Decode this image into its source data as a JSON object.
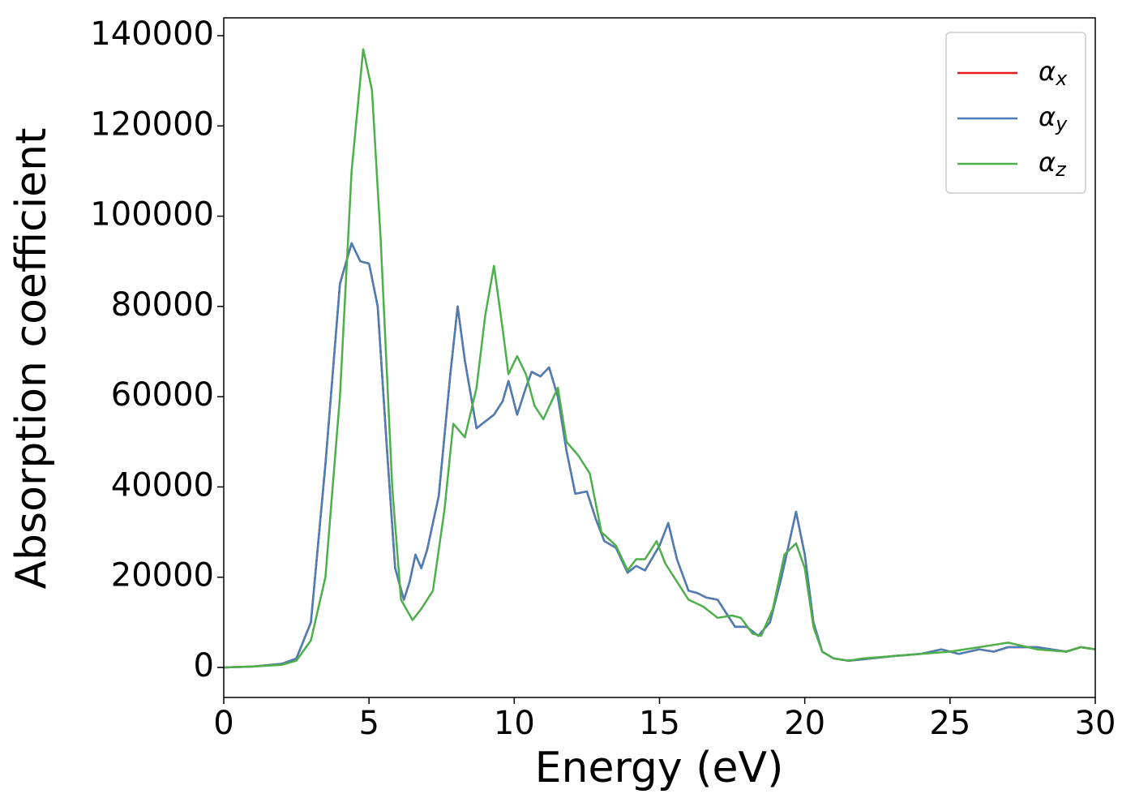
{
  "chart_data": {
    "type": "line",
    "xlabel": "Energy (eV)",
    "ylabel": "Absorption coefficient",
    "xlim": [
      0,
      30
    ],
    "xticks": [
      0,
      5,
      10,
      15,
      20,
      25,
      30
    ],
    "ylim": [
      -6650,
      143950
    ],
    "yticks": [
      0,
      20000,
      40000,
      60000,
      80000,
      100000,
      120000,
      140000
    ],
    "legend": "upper right",
    "series": [
      {
        "name": "αx",
        "color": "#e41a1c",
        "x": [
          0,
          1,
          2,
          2.5,
          3,
          3.5,
          4,
          4.4,
          4.7,
          5,
          5.3,
          5.6,
          5.9,
          6.2,
          6.4,
          6.6,
          6.8,
          7.0,
          7.4,
          7.8,
          8.05,
          8.3,
          8.7,
          9.0,
          9.3,
          9.6,
          9.8,
          10.1,
          10.4,
          10.6,
          10.9,
          11.2,
          11.5,
          11.8,
          12.1,
          12.5,
          12.8,
          13.1,
          13.5,
          13.9,
          14.2,
          14.5,
          15.0,
          15.3,
          15.6,
          16.0,
          16.3,
          16.6,
          17.0,
          17.3,
          17.6,
          18.0,
          18.4,
          18.8,
          19.2,
          19.7,
          20.0,
          20.3,
          20.6,
          21.0,
          21.5,
          22,
          23,
          24,
          24.7,
          25.3,
          26,
          26.5,
          27,
          28,
          29,
          29.5,
          30
        ],
        "values": [
          0,
          200,
          800,
          2000,
          10000,
          45000,
          85000,
          94000,
          90000,
          89500,
          80000,
          50000,
          22000,
          15000,
          19000,
          25000,
          22000,
          26000,
          38000,
          65000,
          80000,
          68000,
          53000,
          54500,
          56000,
          59000,
          63500,
          56000,
          62000,
          65500,
          64500,
          66500,
          60000,
          48000,
          38500,
          39000,
          33000,
          28000,
          26500,
          21000,
          22500,
          21500,
          27000,
          32000,
          24000,
          17000,
          16500,
          15500,
          15000,
          12000,
          9000,
          9000,
          7000,
          10000,
          20000,
          34500,
          25000,
          10000,
          3500,
          2000,
          1500,
          1800,
          2500,
          3000,
          4000,
          3000,
          4000,
          3500,
          4500,
          4500,
          3500,
          4500,
          4000
        ]
      },
      {
        "name": "αy",
        "color": "#4a7fb5",
        "x": [
          0,
          1,
          2,
          2.5,
          3,
          3.5,
          4,
          4.4,
          4.7,
          5,
          5.3,
          5.6,
          5.9,
          6.2,
          6.4,
          6.6,
          6.8,
          7.0,
          7.4,
          7.8,
          8.05,
          8.3,
          8.7,
          9.0,
          9.3,
          9.6,
          9.8,
          10.1,
          10.4,
          10.6,
          10.9,
          11.2,
          11.5,
          11.8,
          12.1,
          12.5,
          12.8,
          13.1,
          13.5,
          13.9,
          14.2,
          14.5,
          15.0,
          15.3,
          15.6,
          16.0,
          16.3,
          16.6,
          17.0,
          17.3,
          17.6,
          18.0,
          18.4,
          18.8,
          19.2,
          19.7,
          20.0,
          20.3,
          20.6,
          21.0,
          21.5,
          22,
          23,
          24,
          24.7,
          25.3,
          26,
          26.5,
          27,
          28,
          29,
          29.5,
          30
        ],
        "values": [
          0,
          200,
          800,
          2000,
          10000,
          45000,
          85000,
          94000,
          90000,
          89500,
          80000,
          50000,
          22000,
          15000,
          19000,
          25000,
          22000,
          26000,
          38000,
          65000,
          80000,
          68000,
          53000,
          54500,
          56000,
          59000,
          63500,
          56000,
          62000,
          65500,
          64500,
          66500,
          60000,
          48000,
          38500,
          39000,
          33000,
          28000,
          26500,
          21000,
          22500,
          21500,
          27000,
          32000,
          24000,
          17000,
          16500,
          15500,
          15000,
          12000,
          9000,
          9000,
          7000,
          10000,
          20000,
          34500,
          25000,
          10000,
          3500,
          2000,
          1500,
          1800,
          2500,
          3000,
          4000,
          3000,
          4000,
          3500,
          4500,
          4500,
          3500,
          4500,
          4000
        ]
      },
      {
        "name": "αz",
        "color": "#4daf4a",
        "x": [
          0,
          1,
          2,
          2.5,
          3,
          3.5,
          4,
          4.4,
          4.8,
          5.1,
          5.4,
          5.8,
          6.1,
          6.5,
          6.8,
          7.2,
          7.6,
          7.9,
          8.3,
          8.7,
          9.0,
          9.3,
          9.6,
          9.8,
          10.1,
          10.4,
          10.7,
          11.0,
          11.5,
          11.8,
          12.2,
          12.6,
          13.0,
          13.5,
          13.9,
          14.2,
          14.5,
          14.9,
          15.2,
          15.7,
          16.0,
          16.5,
          17.0,
          17.5,
          17.8,
          18.2,
          18.5,
          18.9,
          19.3,
          19.7,
          20.0,
          20.3,
          20.6,
          21,
          21.5,
          22,
          23,
          24,
          25,
          26,
          26.5,
          27,
          28,
          29,
          29.5,
          30
        ],
        "values": [
          0,
          200,
          600,
          1500,
          6000,
          20000,
          60000,
          110000,
          137000,
          128000,
          95000,
          40000,
          15000,
          10500,
          13000,
          17000,
          35000,
          54000,
          51000,
          62000,
          78000,
          89000,
          75000,
          65000,
          69000,
          65000,
          58000,
          55000,
          62000,
          50000,
          47000,
          43000,
          30000,
          27000,
          21500,
          24000,
          24000,
          28000,
          23000,
          18000,
          15000,
          13500,
          11000,
          11500,
          11000,
          7500,
          7000,
          13000,
          25000,
          27500,
          22000,
          9000,
          3500,
          2000,
          1500,
          2000,
          2500,
          3000,
          3500,
          4500,
          5000,
          5500,
          4000,
          3500,
          4500,
          4000
        ]
      }
    ]
  }
}
